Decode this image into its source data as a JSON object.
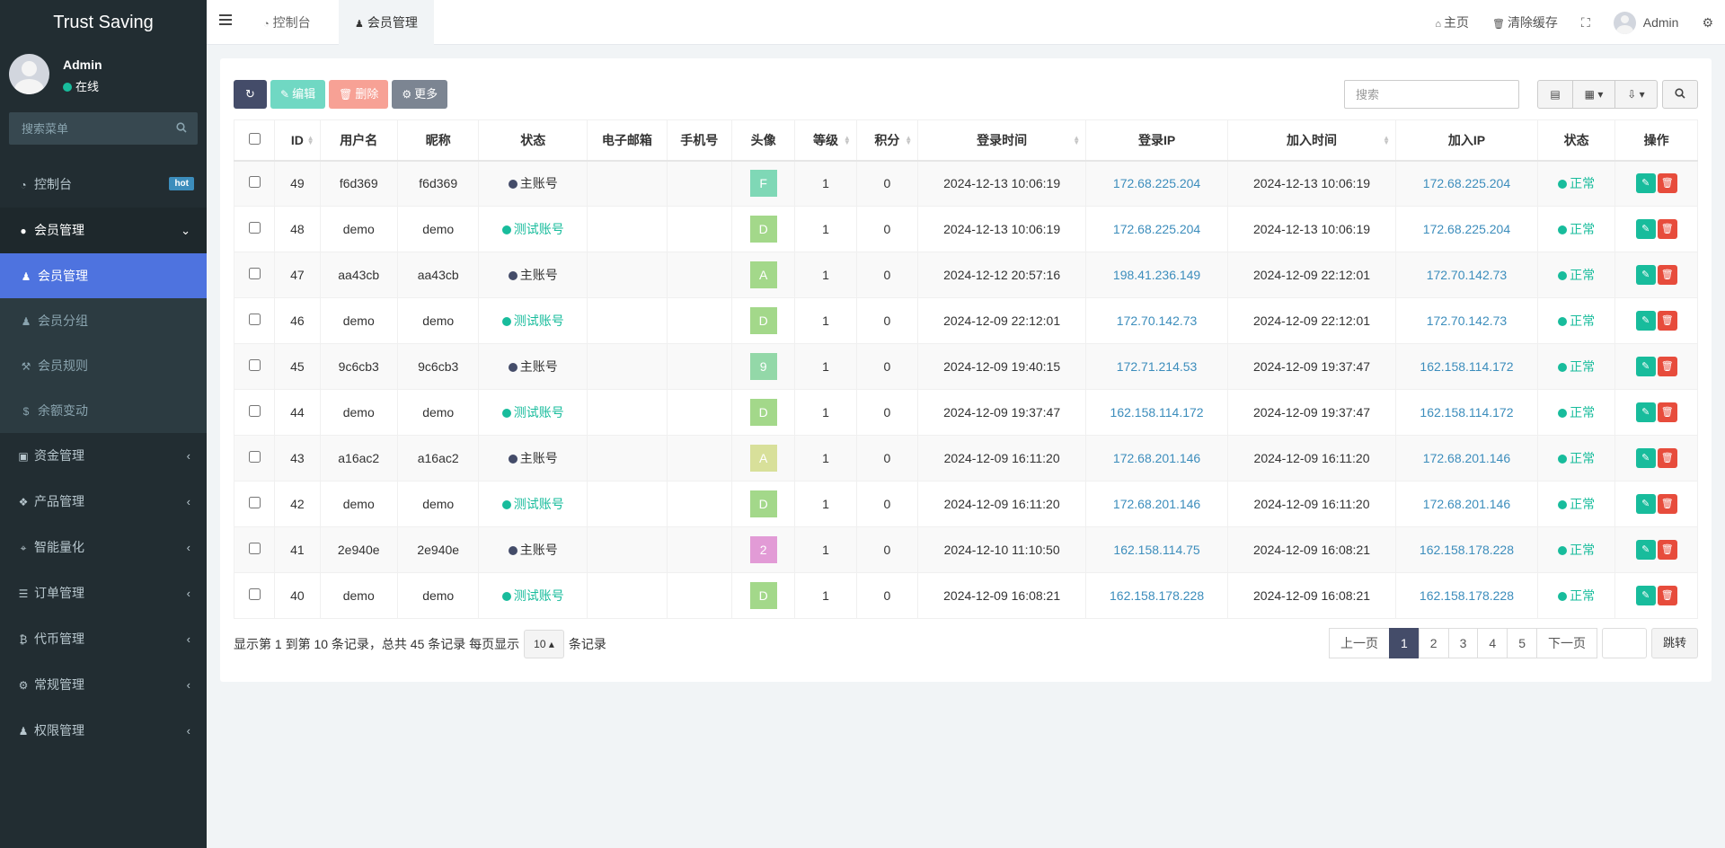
{
  "app": {
    "title": "Trust Saving"
  },
  "user": {
    "name": "Admin",
    "status": "在线"
  },
  "sidebar": {
    "search_placeholder": "搜索菜单",
    "items": [
      {
        "label": "控制台",
        "badge": "hot"
      },
      {
        "label": "会员管理"
      },
      {
        "label": "资金管理"
      },
      {
        "label": "产品管理"
      },
      {
        "label": "智能量化"
      },
      {
        "label": "订单管理"
      },
      {
        "label": "代币管理"
      },
      {
        "label": "常规管理"
      },
      {
        "label": "权限管理"
      }
    ],
    "subitems": [
      {
        "label": "会员管理"
      },
      {
        "label": "会员分组"
      },
      {
        "label": "会员规则"
      },
      {
        "label": "余额变动"
      }
    ]
  },
  "header": {
    "tabs": [
      {
        "label": "控制台"
      },
      {
        "label": "会员管理"
      }
    ],
    "home": "主页",
    "clear_cache": "清除缓存",
    "admin": "Admin"
  },
  "toolbar": {
    "edit": "编辑",
    "delete": "删除",
    "more": "更多",
    "search_placeholder": "搜索"
  },
  "table": {
    "columns": [
      "ID",
      "用户名",
      "昵称",
      "状态",
      "电子邮箱",
      "手机号",
      "头像",
      "等级",
      "积分",
      "登录时间",
      "登录IP",
      "加入时间",
      "加入IP",
      "状态",
      "操作"
    ],
    "rows": [
      {
        "id": "49",
        "username": "f6d369",
        "nickname": "f6d369",
        "type": "主账号",
        "email": "",
        "phone": "",
        "avatar": "F",
        "avatar_color": "#7fd8b6",
        "level": "1",
        "score": "0",
        "login_time": "2024-12-13 10:06:19",
        "login_ip": "172.68.225.204",
        "join_time": "2024-12-13 10:06:19",
        "join_ip": "172.68.225.204",
        "status": "正常"
      },
      {
        "id": "48",
        "username": "demo",
        "nickname": "demo",
        "type": "测试账号",
        "email": "",
        "phone": "",
        "avatar": "D",
        "avatar_color": "#a3d88a",
        "level": "1",
        "score": "0",
        "login_time": "2024-12-13 10:06:19",
        "login_ip": "172.68.225.204",
        "join_time": "2024-12-13 10:06:19",
        "join_ip": "172.68.225.204",
        "status": "正常"
      },
      {
        "id": "47",
        "username": "aa43cb",
        "nickname": "aa43cb",
        "type": "主账号",
        "email": "",
        "phone": "",
        "avatar": "A",
        "avatar_color": "#a3d88a",
        "level": "1",
        "score": "0",
        "login_time": "2024-12-12 20:57:16",
        "login_ip": "198.41.236.149",
        "join_time": "2024-12-09 22:12:01",
        "join_ip": "172.70.142.73",
        "status": "正常"
      },
      {
        "id": "46",
        "username": "demo",
        "nickname": "demo",
        "type": "测试账号",
        "email": "",
        "phone": "",
        "avatar": "D",
        "avatar_color": "#a3d88a",
        "level": "1",
        "score": "0",
        "login_time": "2024-12-09 22:12:01",
        "login_ip": "172.70.142.73",
        "join_time": "2024-12-09 22:12:01",
        "join_ip": "172.70.142.73",
        "status": "正常"
      },
      {
        "id": "45",
        "username": "9c6cb3",
        "nickname": "9c6cb3",
        "type": "主账号",
        "email": "",
        "phone": "",
        "avatar": "9",
        "avatar_color": "#93d8a8",
        "level": "1",
        "score": "0",
        "login_time": "2024-12-09 19:40:15",
        "login_ip": "172.71.214.53",
        "join_time": "2024-12-09 19:37:47",
        "join_ip": "162.158.114.172",
        "status": "正常"
      },
      {
        "id": "44",
        "username": "demo",
        "nickname": "demo",
        "type": "测试账号",
        "email": "",
        "phone": "",
        "avatar": "D",
        "avatar_color": "#a3d88a",
        "level": "1",
        "score": "0",
        "login_time": "2024-12-09 19:37:47",
        "login_ip": "162.158.114.172",
        "join_time": "2024-12-09 19:37:47",
        "join_ip": "162.158.114.172",
        "status": "正常"
      },
      {
        "id": "43",
        "username": "a16ac2",
        "nickname": "a16ac2",
        "type": "主账号",
        "email": "",
        "phone": "",
        "avatar": "A",
        "avatar_color": "#d8e09a",
        "level": "1",
        "score": "0",
        "login_time": "2024-12-09 16:11:20",
        "login_ip": "172.68.201.146",
        "join_time": "2024-12-09 16:11:20",
        "join_ip": "172.68.201.146",
        "status": "正常"
      },
      {
        "id": "42",
        "username": "demo",
        "nickname": "demo",
        "type": "测试账号",
        "email": "",
        "phone": "",
        "avatar": "D",
        "avatar_color": "#a3d88a",
        "level": "1",
        "score": "0",
        "login_time": "2024-12-09 16:11:20",
        "login_ip": "172.68.201.146",
        "join_time": "2024-12-09 16:11:20",
        "join_ip": "172.68.201.146",
        "status": "正常"
      },
      {
        "id": "41",
        "username": "2e940e",
        "nickname": "2e940e",
        "type": "主账号",
        "email": "",
        "phone": "",
        "avatar": "2",
        "avatar_color": "#e29bd6",
        "level": "1",
        "score": "0",
        "login_time": "2024-12-10 11:10:50",
        "login_ip": "162.158.114.75",
        "join_time": "2024-12-09 16:08:21",
        "join_ip": "162.158.178.228",
        "status": "正常"
      },
      {
        "id": "40",
        "username": "demo",
        "nickname": "demo",
        "type": "测试账号",
        "email": "",
        "phone": "",
        "avatar": "D",
        "avatar_color": "#a3d88a",
        "level": "1",
        "score": "0",
        "login_time": "2024-12-09 16:08:21",
        "login_ip": "162.158.178.228",
        "join_time": "2024-12-09 16:08:21",
        "join_ip": "162.158.178.228",
        "status": "正常"
      }
    ]
  },
  "footer": {
    "info_before": "显示第 1 到第 10 条记录，总共 45 条记录 每页显示",
    "page_size": "10",
    "info_after": "条记录",
    "prev": "上一页",
    "next": "下一页",
    "pages": [
      "1",
      "2",
      "3",
      "4",
      "5"
    ],
    "current_page": "1",
    "jump": "跳转"
  },
  "colors": {
    "sidebar_bg": "#222d32",
    "active_item": "#4e73df",
    "main_account_dot": "#444c69",
    "test_account": "#18bc9c",
    "ip_link": "#3c8dbc",
    "edit": "#18bc9c",
    "delete": "#e74c3c"
  }
}
